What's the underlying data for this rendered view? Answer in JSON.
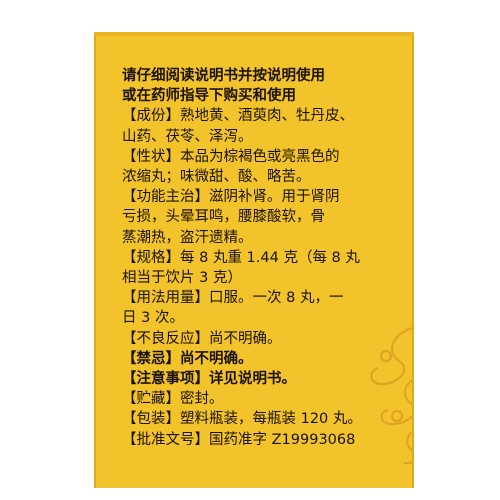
{
  "header": {
    "line1": "请仔细阅读说明书并按说明使用",
    "line2": "或在药师指导下购买和使用"
  },
  "sections": [
    {
      "tag": "【成份】",
      "lines": [
        "熟地黄、酒萸肉、牡丹皮、",
        "山药、茯苓、泽泻。"
      ]
    },
    {
      "tag": "【性状】",
      "lines": [
        "本品为棕褐色或亮黑色的",
        "浓缩丸；味微甜、酸、略苦。"
      ]
    },
    {
      "tag": "【功能主治】",
      "lines": [
        "滋阴补肾。用于肾阴",
        "亏损，头晕耳鸣，腰膝酸软，骨",
        "蒸潮热，盗汗遗精。"
      ]
    },
    {
      "tag": "【规格】",
      "lines": [
        "每 8 丸重 1.44 克（每 8 丸",
        "相当于饮片 3 克）"
      ]
    },
    {
      "tag": "【用法用量】",
      "lines": [
        "口服。一次 8 丸，一",
        "日 3 次。"
      ]
    },
    {
      "tag": "【不良反应】",
      "lines": [
        "尚不明确。"
      ]
    },
    {
      "tag": "【禁忌】",
      "lines": [
        "尚不明确。"
      ],
      "bold": true
    },
    {
      "tag": "【注意事项】",
      "lines": [
        "详见说明书。"
      ],
      "bold": true
    },
    {
      "tag": "【贮藏】",
      "lines": [
        "密封。"
      ]
    },
    {
      "tag": "【包装】",
      "lines": [
        "塑料瓶装，每瓶装 120 丸。"
      ]
    },
    {
      "tag": "【批准文号】",
      "lines": [
        "国药准字 Z19993068"
      ]
    }
  ]
}
